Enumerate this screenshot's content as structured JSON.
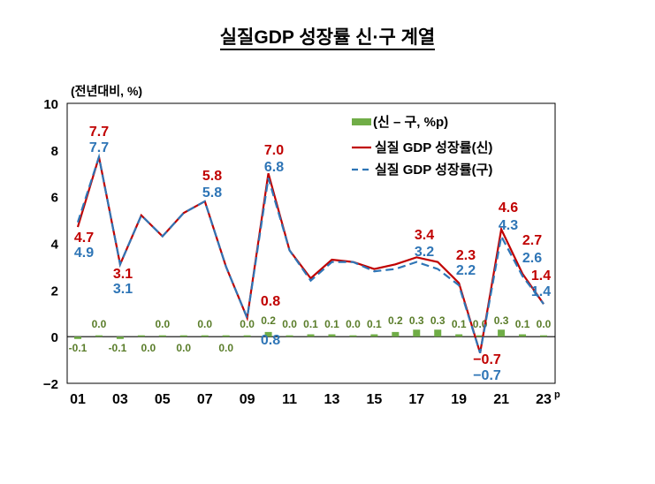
{
  "chart_data": {
    "type": "line+bar",
    "title": "실질GDP 성장률 신·구 계열",
    "ylabel": "(전년대비, %)",
    "ylim": [
      -2,
      10
    ],
    "yticks": [
      -2,
      0,
      2,
      4,
      6,
      8,
      10
    ],
    "x": [
      "01",
      "02",
      "03",
      "04",
      "05",
      "06",
      "07",
      "08",
      "09",
      "10",
      "11",
      "12",
      "13",
      "14",
      "15",
      "16",
      "17",
      "18",
      "19",
      "20",
      "21",
      "22",
      "23"
    ],
    "xtick_labels": [
      "01",
      "03",
      "05",
      "07",
      "09",
      "11",
      "13",
      "15",
      "17",
      "19",
      "21",
      "23"
    ],
    "xtick_superscript": "p",
    "legend_position": "top-right",
    "series": [
      {
        "name": "(신 – 구, %p)",
        "type": "bar",
        "color": "#70ad47",
        "values": [
          -0.1,
          0.0,
          -0.1,
          0.0,
          0.0,
          0.0,
          0.0,
          0.0,
          0.0,
          0.2,
          0.0,
          0.1,
          0.1,
          0.0,
          0.1,
          0.2,
          0.3,
          0.3,
          0.1,
          0.0,
          0.3,
          0.1,
          0.0
        ]
      },
      {
        "name": "실질 GDP 성장률(신)",
        "type": "line",
        "color": "#c00000",
        "values": [
          4.7,
          7.7,
          3.1,
          5.2,
          4.3,
          5.3,
          5.8,
          3.0,
          0.8,
          7.0,
          3.7,
          2.5,
          3.3,
          3.2,
          2.9,
          3.1,
          3.4,
          3.2,
          2.3,
          -0.7,
          4.6,
          2.7,
          1.4
        ]
      },
      {
        "name": "실질 GDP 성장률(구)",
        "type": "line",
        "dashed": true,
        "color": "#2e75b6",
        "values": [
          4.9,
          7.7,
          3.1,
          5.2,
          4.3,
          5.3,
          5.8,
          3.0,
          0.8,
          6.8,
          3.7,
          2.4,
          3.2,
          3.2,
          2.8,
          2.9,
          3.2,
          2.9,
          2.2,
          -0.7,
          4.3,
          2.6,
          1.4
        ]
      }
    ]
  }
}
